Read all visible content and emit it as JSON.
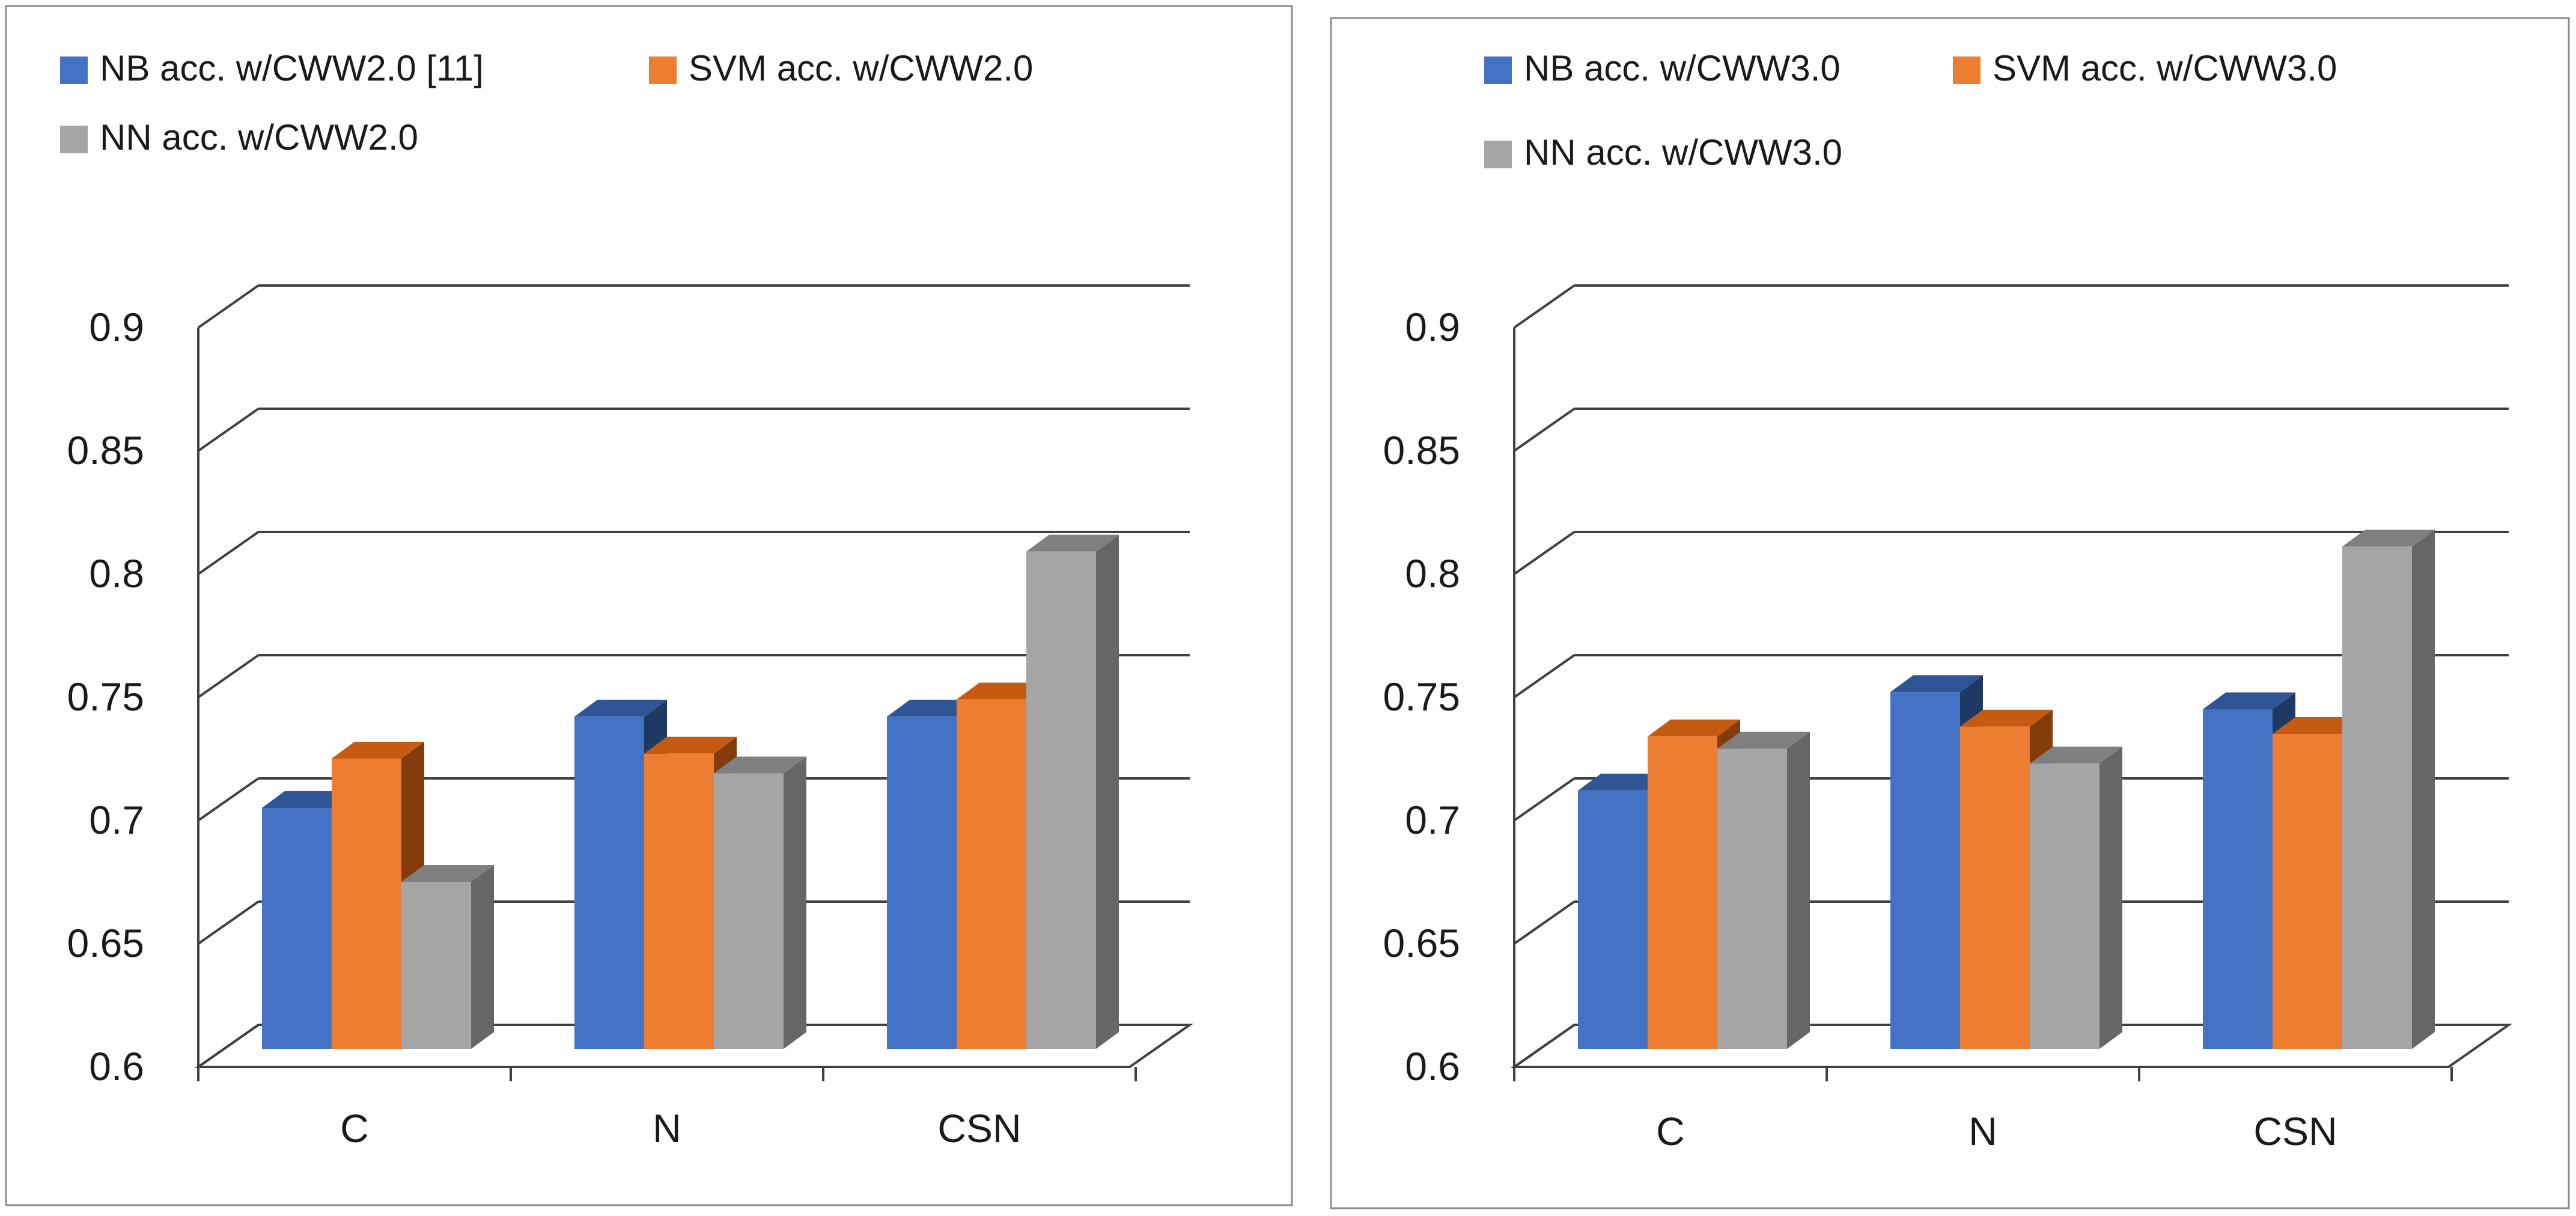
{
  "chart_data": [
    {
      "type": "bar",
      "subtype": "3d-clustered-column",
      "categories": [
        "C",
        "N",
        "CSN"
      ],
      "series": [
        {
          "name": "NB acc. w/CWW2.0 [11]",
          "values": [
            0.71,
            0.747,
            0.747
          ]
        },
        {
          "name": "SVM acc. w/CWW2.0",
          "values": [
            0.73,
            0.732,
            0.754
          ]
        },
        {
          "name": "NN acc. w/CWW2.0",
          "values": [
            0.68,
            0.724,
            0.814
          ]
        }
      ],
      "yticks": [
        "0.6",
        "0.65",
        "0.7",
        "0.75",
        "0.8",
        "0.85",
        "0.9"
      ],
      "ylim": [
        0.6,
        0.9
      ],
      "title": "",
      "xlabel": "",
      "ylabel": "",
      "legend_position": "top",
      "grid": true
    },
    {
      "type": "bar",
      "subtype": "3d-clustered-column",
      "categories": [
        "C",
        "N",
        "CSN"
      ],
      "series": [
        {
          "name": "NB acc. w/CWW3.0",
          "values": [
            0.717,
            0.757,
            0.75
          ]
        },
        {
          "name": "SVM acc. w/CWW3.0",
          "values": [
            0.739,
            0.743,
            0.74
          ]
        },
        {
          "name": "NN acc. w/CWW3.0",
          "values": [
            0.734,
            0.728,
            0.816
          ]
        }
      ],
      "yticks": [
        "0.6",
        "0.65",
        "0.7",
        "0.75",
        "0.8",
        "0.85",
        "0.9"
      ],
      "ylim": [
        0.6,
        0.9
      ],
      "title": "",
      "xlabel": "",
      "ylabel": "",
      "legend_position": "top",
      "grid": true
    }
  ],
  "colors": {
    "series_front": [
      "#4472C4",
      "#ED7D31",
      "#A5A5A5"
    ],
    "series_top": [
      "#2F5597",
      "#C55A11",
      "#7F7F7F"
    ],
    "series_side": [
      "#203864",
      "#843C0C",
      "#666666"
    ],
    "grid": "#404040",
    "frame": "#8c8c8c"
  }
}
